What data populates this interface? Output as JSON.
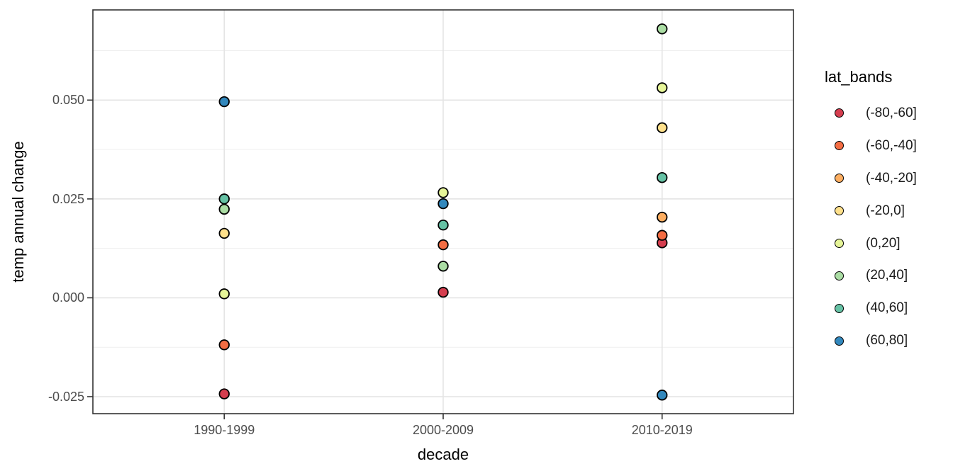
{
  "chart_data": {
    "type": "scatter",
    "title": "",
    "xlabel": "decade",
    "ylabel": "temp annual change",
    "categories": [
      "1990-1999",
      "2000-2009",
      "2010-2019"
    ],
    "y_ticks": [
      0.05,
      0.025,
      0.0,
      -0.025
    ],
    "y_tick_labels": [
      "0.050",
      "0.025",
      "0.000",
      "-0.025"
    ],
    "y_minor_ticks": [
      0.0625,
      0.0375,
      0.0125,
      -0.0125
    ],
    "ylim": [
      -0.0293,
      0.0728
    ],
    "grid": "on",
    "legend": {
      "title": "lat_bands",
      "position": "right",
      "entries": [
        {
          "label": "(-80,-60]",
          "color": "#D53E4F"
        },
        {
          "label": "(-60,-40]",
          "color": "#F46D43"
        },
        {
          "label": "(-40,-20]",
          "color": "#FDAE61"
        },
        {
          "label": "(-20,0]",
          "color": "#FEE08B"
        },
        {
          "label": "(0,20]",
          "color": "#E6F598"
        },
        {
          "label": "(20,40]",
          "color": "#ABDDA4"
        },
        {
          "label": "(40,60]",
          "color": "#66C2A5"
        },
        {
          "label": "(60,80]",
          "color": "#3288BD"
        }
      ]
    },
    "series": [
      {
        "name": "(-80,-60]",
        "color": "#D53E4F",
        "points": [
          {
            "x": "1990-1999",
            "y": -0.0243
          },
          {
            "x": "2000-2009",
            "y": 0.0014
          },
          {
            "x": "2010-2019",
            "y": 0.0139
          }
        ]
      },
      {
        "name": "(-60,-40]",
        "color": "#F46D43",
        "points": [
          {
            "x": "1990-1999",
            "y": -0.0119
          },
          {
            "x": "2000-2009",
            "y": 0.0134
          },
          {
            "x": "2010-2019",
            "y": 0.0158
          }
        ]
      },
      {
        "name": "(-40,-20]",
        "color": "#FDAE61",
        "points": [
          {
            "x": "2010-2019",
            "y": 0.0204
          }
        ]
      },
      {
        "name": "(-20,0]",
        "color": "#FEE08B",
        "points": [
          {
            "x": "1990-1999",
            "y": 0.0163
          },
          {
            "x": "2010-2019",
            "y": 0.043
          }
        ]
      },
      {
        "name": "(0,20]",
        "color": "#E6F598",
        "points": [
          {
            "x": "1990-1999",
            "y": 0.001
          },
          {
            "x": "2000-2009",
            "y": 0.0266
          },
          {
            "x": "2010-2019",
            "y": 0.0531
          }
        ]
      },
      {
        "name": "(20,40]",
        "color": "#ABDDA4",
        "points": [
          {
            "x": "1990-1999",
            "y": 0.0224
          },
          {
            "x": "2000-2009",
            "y": 0.008
          },
          {
            "x": "2010-2019",
            "y": 0.068
          }
        ]
      },
      {
        "name": "(40,60]",
        "color": "#66C2A5",
        "points": [
          {
            "x": "1990-1999",
            "y": 0.025
          },
          {
            "x": "2000-2009",
            "y": 0.0184
          },
          {
            "x": "2010-2019",
            "y": 0.0304
          }
        ]
      },
      {
        "name": "(60,80]",
        "color": "#3288BD",
        "points": [
          {
            "x": "1990-1999",
            "y": 0.0496
          },
          {
            "x": "2000-2009",
            "y": 0.0238
          },
          {
            "x": "2010-2019",
            "y": -0.0246
          }
        ]
      }
    ],
    "style": {
      "background": "#FFFFFF",
      "panel_background": "#FFFFFF",
      "panel_border": "#333333",
      "grid_major": "#E4E4E4",
      "grid_minor": "#EFEFEF",
      "point_stroke": "#000000",
      "tick_color": "#333333",
      "tick_text_color": "#4D4D4D",
      "title_text_color": "#000000"
    }
  }
}
